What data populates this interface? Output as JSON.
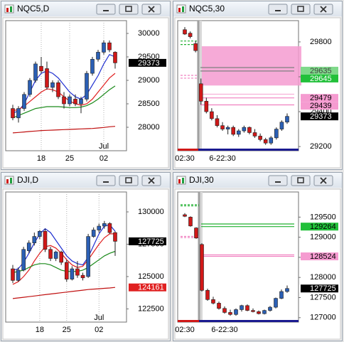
{
  "chart_data": [
    {
      "type": "candlestick",
      "title": "NQC5,D",
      "categories": [
        null,
        null,
        null,
        null,
        null,
        "18",
        null,
        null,
        null,
        null,
        "25",
        null,
        null,
        null,
        null,
        null,
        "02",
        null,
        null
      ],
      "months": [
        null,
        null,
        null,
        null,
        null,
        null,
        null,
        null,
        null,
        null,
        null,
        null,
        null,
        null,
        null,
        null,
        "Jul",
        null,
        null
      ],
      "open": [
        28400,
        28200,
        28400,
        28700,
        29000,
        29300,
        29250,
        28850,
        28950,
        28650,
        28500,
        28600,
        28500,
        28600,
        29150,
        29450,
        29600,
        29800,
        29600
      ],
      "high": [
        28480,
        28450,
        28750,
        29050,
        29400,
        29500,
        29400,
        29000,
        29000,
        28750,
        28700,
        28700,
        28650,
        29200,
        29500,
        29650,
        29850,
        29850,
        29620
      ],
      "low": [
        28150,
        28100,
        28350,
        28650,
        28950,
        29150,
        28800,
        28750,
        28600,
        28400,
        28450,
        28450,
        28300,
        28550,
        29100,
        29400,
        29550,
        29600,
        29250
      ],
      "close": [
        28200,
        28400,
        28700,
        29000,
        29350,
        29200,
        28850,
        28950,
        28650,
        28500,
        28650,
        28500,
        28600,
        29150,
        29450,
        29600,
        29800,
        29650,
        29373
      ],
      "up_color": "#2b5fb4",
      "down_color": "#d01818",
      "lines": [
        {
          "color": "#1f2fd0",
          "values": [
            28300,
            28350,
            28500,
            28750,
            29000,
            29150,
            29200,
            29150,
            29050,
            28900,
            28750,
            28650,
            28600,
            28700,
            28900,
            29100,
            29350,
            29550,
            29500
          ]
        },
        {
          "color": "#e02020",
          "values": [
            28350,
            28380,
            28450,
            28550,
            28650,
            28750,
            28820,
            28800,
            28750,
            28650,
            28560,
            28500,
            28470,
            28500,
            28600,
            28750,
            28900,
            29050,
            29150
          ]
        },
        {
          "color": "#1a8a1a",
          "values": [
            28200,
            28250,
            28300,
            28350,
            28400,
            28420,
            28440,
            28440,
            28440,
            28430,
            28420,
            28420,
            28430,
            28460,
            28520,
            28600,
            28700,
            28800,
            28880
          ]
        },
        {
          "color": "#c01010",
          "values": [
            27880,
            27890,
            27900,
            27910,
            27920,
            27930,
            27935,
            27940,
            27945,
            27950,
            27955,
            27960,
            27965,
            27970,
            27975,
            27985,
            27995,
            28010,
            28020
          ]
        }
      ],
      "ylim": [
        27500,
        30273
      ],
      "yticks": [
        28000,
        28500,
        29000,
        29500,
        30000
      ],
      "grid": true,
      "markers": [
        {
          "value": 29373,
          "color": "#000000",
          "text_color": "#ffffff"
        }
      ]
    },
    {
      "type": "candlestick",
      "title": "NQC5,30",
      "categories": [
        "02:30",
        null,
        null,
        null,
        null,
        null,
        null,
        "6-22:30",
        null,
        null,
        null,
        null,
        null,
        null,
        null,
        null,
        null,
        null,
        null,
        null
      ],
      "session_start": 3,
      "open": [
        29870,
        29850,
        29790,
        29560,
        29460,
        29400,
        29360,
        29320,
        29300,
        29310,
        29270,
        29290,
        29310,
        29280,
        29260,
        29240,
        29220,
        29250,
        29300,
        29340
      ],
      "high": [
        29885,
        29860,
        29805,
        29590,
        29480,
        29420,
        29380,
        29340,
        29320,
        29320,
        29300,
        29320,
        29315,
        29300,
        29275,
        29250,
        29260,
        29310,
        29350,
        29390
      ],
      "low": [
        29840,
        29820,
        29740,
        29440,
        29390,
        29350,
        29310,
        29290,
        29270,
        29260,
        29255,
        29280,
        29270,
        29250,
        29230,
        29210,
        29210,
        29240,
        29290,
        29330
      ],
      "close": [
        29845,
        29830,
        29750,
        29460,
        29400,
        29360,
        29320,
        29300,
        29310,
        29270,
        29290,
        29310,
        29280,
        29260,
        29240,
        29220,
        29250,
        29300,
        29340,
        29373
      ],
      "up_color": "#2b5fb4",
      "down_color": "#d01818",
      "zone": {
        "ylim": [
          29550,
          29775
        ],
        "start": 3,
        "color": "#f59bd0"
      },
      "levels": [
        {
          "value": 29805,
          "color": "#20b030",
          "start": 0,
          "end": 2
        },
        {
          "value": 29785,
          "color": "#20b030",
          "start": 0,
          "end": 2
        },
        {
          "value": 29608,
          "color": "#f080c0",
          "start": 0,
          "end": 2
        },
        {
          "value": 29592,
          "color": "#f080c0",
          "start": 0,
          "end": 2
        },
        {
          "value": 29653,
          "color": "#808080",
          "start": 3,
          "end": 19
        },
        {
          "value": 29633,
          "color": "#808080",
          "start": 3,
          "end": 19
        },
        {
          "value": 29500,
          "color": "#f8b0d8",
          "start": 3,
          "end": 19
        },
        {
          "value": 29479,
          "color": "#f080c0",
          "start": 3,
          "end": 19
        },
        {
          "value": 29439,
          "color": "#f080c0",
          "start": 3,
          "end": 19
        }
      ],
      "ylim": [
        29176,
        29922
      ],
      "yticks": [
        29200,
        29400,
        29600,
        29800
      ],
      "grid": false,
      "markers": [
        {
          "value": 29635,
          "color": "#7fd98a",
          "text_color": "#404040"
        },
        {
          "value": 29645,
          "color": "#22c03a",
          "text_color": "#ffffff"
        },
        {
          "value": 29479,
          "color": "#f59bd0",
          "text_color": "#000000"
        },
        {
          "value": 29439,
          "color": "#f59bd0",
          "text_color": "#000000"
        },
        {
          "value": 29373,
          "color": "#000000",
          "text_color": "#ffffff"
        }
      ]
    },
    {
      "type": "candlestick",
      "title": "DJI,D",
      "categories": [
        null,
        null,
        null,
        null,
        null,
        "18",
        null,
        null,
        null,
        null,
        "25",
        null,
        null,
        null,
        null,
        null,
        "02",
        null,
        null,
        null
      ],
      "months": [
        null,
        null,
        null,
        null,
        null,
        null,
        null,
        null,
        null,
        null,
        null,
        null,
        null,
        null,
        null,
        null,
        "Jul",
        null,
        null,
        null
      ],
      "open": [
        125600,
        124700,
        125500,
        127000,
        127600,
        128100,
        128500,
        127100,
        126400,
        126900,
        126100,
        124800,
        125600,
        125100,
        125000,
        128100,
        128600,
        128900,
        129100,
        128400
      ],
      "high": [
        125900,
        125700,
        127300,
        127800,
        128400,
        128600,
        128700,
        127300,
        127000,
        127000,
        126300,
        125800,
        126200,
        125300,
        128300,
        128800,
        129100,
        129300,
        129200,
        128500
      ],
      "low": [
        124500,
        124600,
        125400,
        126800,
        127400,
        127900,
        126900,
        126200,
        126200,
        125900,
        124600,
        124700,
        124900,
        124700,
        124900,
        128000,
        128400,
        128700,
        128300,
        126600
      ],
      "close": [
        124700,
        125500,
        127100,
        127600,
        128100,
        128500,
        127100,
        126400,
        126900,
        126100,
        124800,
        125600,
        125100,
        124900,
        128100,
        128600,
        128900,
        129100,
        128400,
        127725
      ],
      "up_color": "#2b5fb4",
      "down_color": "#d01818",
      "lines": [
        {
          "color": "#1f2fd0",
          "values": [
            125500,
            125600,
            126100,
            126800,
            127600,
            128300,
            128700,
            128400,
            127800,
            127200,
            126600,
            126200,
            126000,
            125900,
            126500,
            127400,
            128300,
            128900,
            129000,
            128500
          ]
        },
        {
          "color": "#e02020",
          "values": [
            124400,
            124600,
            125000,
            125500,
            126200,
            126800,
            127300,
            127400,
            127200,
            126800,
            126300,
            125900,
            125700,
            125800,
            126300,
            126900,
            127500,
            128000,
            128300,
            128300
          ]
        },
        {
          "color": "#1a8a1a",
          "values": [
            125300,
            125400,
            125500,
            125700,
            125900,
            126000,
            126000,
            125900,
            125700,
            125500,
            125400,
            125400,
            125400,
            125500,
            125700,
            126000,
            126300,
            126600,
            126800,
            126950
          ]
        },
        {
          "color": "#c01010",
          "values": [
            123300,
            123350,
            123400,
            123450,
            123500,
            123550,
            123600,
            123650,
            123700,
            123750,
            123800,
            123850,
            123900,
            123950,
            124000,
            124030,
            124060,
            124090,
            124120,
            124161
          ]
        }
      ],
      "ylim": [
        121480,
        131540
      ],
      "yticks": [
        122500,
        125000,
        127500,
        130000
      ],
      "grid": true,
      "markers": [
        {
          "value": 127725,
          "color": "#000000",
          "text_color": "#ffffff"
        },
        {
          "value": 124161,
          "color": "#e02020",
          "text_color": "#ffffff"
        }
      ]
    },
    {
      "type": "candlestick",
      "title": "DJI,30",
      "categories": [
        "02:30",
        null,
        null,
        null,
        null,
        null,
        null,
        "6-22:30",
        null,
        null,
        null,
        null,
        null,
        null,
        null,
        null,
        null,
        null,
        null
      ],
      "session_start": 3,
      "open": [
        129560,
        129500,
        129230,
        128820,
        127680,
        127450,
        127360,
        127230,
        127130,
        127080,
        127200,
        127300,
        127180,
        127150,
        127100,
        127180,
        127260,
        127480,
        127650
      ],
      "high": [
        129600,
        129520,
        129250,
        128850,
        127720,
        127520,
        127400,
        127280,
        127200,
        127230,
        127320,
        127330,
        127230,
        127180,
        127200,
        127290,
        127500,
        127700,
        127800
      ],
      "low": [
        129500,
        129260,
        128960,
        127650,
        127420,
        127330,
        127200,
        127100,
        127050,
        127050,
        127150,
        127160,
        127130,
        127080,
        127080,
        127150,
        127230,
        127460,
        127620
      ],
      "close": [
        129520,
        129280,
        128980,
        127680,
        127450,
        127360,
        127230,
        127130,
        127080,
        127200,
        127300,
        127180,
        127150,
        127100,
        127180,
        127260,
        127480,
        127650,
        127725
      ],
      "up_color": "#2b5fb4",
      "down_color": "#d01818",
      "levels": [
        {
          "value": 129810,
          "color": "#20b030",
          "start": 0,
          "end": 2
        },
        {
          "value": 129780,
          "color": "#20b030",
          "start": 0,
          "end": 2
        },
        {
          "value": 129020,
          "color": "#f080c0",
          "start": 0,
          "end": 2
        },
        {
          "value": 128990,
          "color": "#f080c0",
          "start": 0,
          "end": 2
        },
        {
          "value": 129330,
          "color": "#20b030",
          "start": 3,
          "end": 18
        },
        {
          "value": 129264,
          "color": "#20b030",
          "start": 3,
          "end": 18
        },
        {
          "value": 128560,
          "color": "#f080c0",
          "start": 3,
          "end": 18
        },
        {
          "value": 128524,
          "color": "#f080c0",
          "start": 3,
          "end": 18
        }
      ],
      "ylim": [
        126890,
        130125
      ],
      "yticks": [
        127000,
        127500,
        128000,
        128500,
        129000,
        129500
      ],
      "grid": false,
      "markers": [
        {
          "value": 129264,
          "color": "#22c03a",
          "text_color": "#000000"
        },
        {
          "value": 128524,
          "color": "#f59bd0",
          "text_color": "#000000"
        },
        {
          "value": 127725,
          "color": "#000000",
          "text_color": "#ffffff"
        }
      ]
    }
  ]
}
